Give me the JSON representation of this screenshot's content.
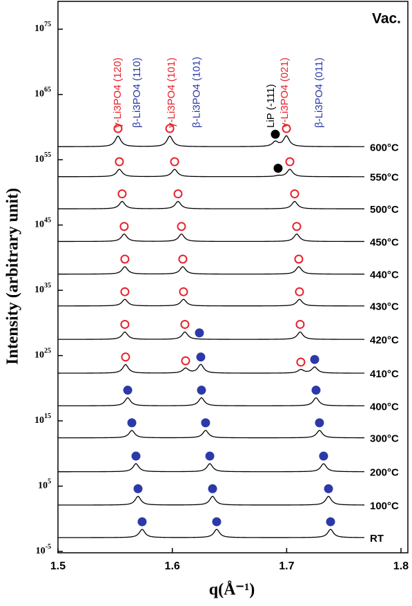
{
  "chart_data": {
    "type": "offset-line",
    "title": "Vac.",
    "xlabel": "q(Å⁻¹)",
    "ylabel": "Intensity (arbitrary unit)",
    "xlim": [
      1.5,
      1.806
    ],
    "xticks": [
      1.5,
      1.6,
      1.7,
      1.8
    ],
    "ylim": [
      1e-05,
      1e+80
    ],
    "log_y": true,
    "yticks": [
      {
        "value": 1e-05,
        "label": "10^-5"
      },
      {
        "value": 100000.0,
        "label": "10^5"
      },
      {
        "value": 1000000000000000.0,
        "label": "10^15"
      },
      {
        "value": 1e+25,
        "label": "10^25"
      },
      {
        "value": 1e+35,
        "label": "10^35"
      },
      {
        "value": 1e+45,
        "label": "10^45"
      },
      {
        "value": 1e+55,
        "label": "10^55"
      },
      {
        "value": 1e+65,
        "label": "10^65"
      },
      {
        "value": 1e+75,
        "label": "10^75"
      }
    ],
    "line_color": "#000000",
    "open_marker_color": "#e8202a",
    "annotations": [
      {
        "text": "γ-Li3PO4 (120)",
        "q": 1.5525,
        "color": "#e8202a"
      },
      {
        "text": "β-Li3PO4 (110)",
        "q": 1.5695,
        "color": "#2b3aa8"
      },
      {
        "text": "γ-Li3PO4 (101)",
        "q": 1.5995,
        "color": "#e8202a"
      },
      {
        "text": "β-Li3PO4 (101)",
        "q": 1.6215,
        "color": "#2b3aa8"
      },
      {
        "text": "LiP (-111)",
        "q": 1.6865,
        "color": "#000000"
      },
      {
        "text": "γ-Li3PO4 (021)",
        "q": 1.6985,
        "color": "#e8202a"
      },
      {
        "text": "β-Li3PO4 (011)",
        "q": 1.7287,
        "color": "#2b3aa8"
      }
    ],
    "series": [
      {
        "name": "600°C",
        "baseline": 1e+57,
        "x": [
          1.5525,
          1.5978,
          1.6901,
          1.6998
        ],
        "values": [
          6e+59,
          6e+59,
          8e+58,
          6e+59
        ],
        "colors": [
          "#e8202a",
          "#e8202a",
          "#000000",
          "#e8202a"
        ]
      },
      {
        "name": "550°C",
        "baseline": 2.5e+52,
        "x": [
          1.5537,
          1.602,
          1.6925,
          1.7028
        ],
        "values": [
          5e+54,
          5e+54,
          5e+53,
          5e+54
        ],
        "colors": [
          "#e8202a",
          "#e8202a",
          "#000000",
          "#e8202a"
        ]
      },
      {
        "name": "500°C",
        "baseline": 3e+47,
        "x": [
          1.5561,
          1.605,
          1.707
        ],
        "values": [
          6e+49,
          6e+49,
          6e+49
        ],
        "colors": [
          "#e8202a",
          "#e8202a",
          "#e8202a"
        ]
      },
      {
        "name": "450°C",
        "baseline": 3e+42,
        "x": [
          1.5579,
          1.608,
          1.7088
        ],
        "values": [
          6e+44,
          6e+44,
          6e+44
        ],
        "colors": [
          "#e8202a",
          "#e8202a",
          "#e8202a"
        ]
      },
      {
        "name": "440°C",
        "baseline": 3e+37,
        "x": [
          1.5585,
          1.6092,
          1.7106
        ],
        "values": [
          6e+39,
          6e+39,
          6e+39
        ],
        "colors": [
          "#e8202a",
          "#e8202a",
          "#e8202a"
        ]
      },
      {
        "name": "430°C",
        "baseline": 4e+32,
        "x": [
          1.5585,
          1.6098,
          1.7112
        ],
        "values": [
          6e+34,
          6e+34,
          6e+34
        ],
        "colors": [
          "#e8202a",
          "#e8202a",
          "#e8202a"
        ]
      },
      {
        "name": "420°C",
        "baseline": 3e+27,
        "x": [
          1.5585,
          1.611,
          1.6237,
          1.7118
        ],
        "values": [
          6e+29,
          6e+29,
          3e+28,
          6e+29
        ],
        "colors": [
          "#e8202a",
          "#e8202a",
          "#2b3aa8",
          "#e8202a"
        ]
      },
      {
        "name": "410°C",
        "baseline": 2e+22,
        "x": [
          1.5591,
          1.6116,
          1.6249,
          1.7124,
          1.7245
        ],
        "values": [
          6e+24,
          1.6e+24,
          6e+24,
          1e+24,
          2.5e+24
        ],
        "colors": [
          "#e8202a",
          "#e8202a",
          "#2b3aa8",
          "#e8202a",
          "#2b3aa8"
        ]
      },
      {
        "name": "400°C",
        "baseline": 2e+17,
        "x": [
          1.561,
          1.6255,
          1.7257
        ],
        "values": [
          5e+19,
          5e+19,
          5e+19
        ],
        "colors": [
          "#2b3aa8",
          "#2b3aa8",
          "#2b3aa8"
        ]
      },
      {
        "name": "300°C",
        "baseline": 2500000000000.0,
        "x": [
          1.5646,
          1.6291,
          1.7287
        ],
        "values": [
          500000000000000.0,
          500000000000000.0,
          500000000000000.0
        ],
        "colors": [
          "#2b3aa8",
          "#2b3aa8",
          "#2b3aa8"
        ]
      },
      {
        "name": "200°C",
        "baseline": 16000000.0,
        "x": [
          1.5682,
          1.6328,
          1.7323
        ],
        "values": [
          4000000000.0,
          4000000000.0,
          4000000000.0
        ],
        "colors": [
          "#2b3aa8",
          "#2b3aa8",
          "#2b3aa8"
        ]
      },
      {
        "name": "100°C",
        "baseline": 126,
        "x": [
          1.57,
          1.6352,
          1.7366
        ],
        "values": [
          40000.0,
          40000.0,
          40000.0
        ],
        "colors": [
          "#2b3aa8",
          "#2b3aa8",
          "#2b3aa8"
        ]
      },
      {
        "name": "RT",
        "baseline": 0.0013,
        "x": [
          1.5736,
          1.6388,
          1.7384
        ],
        "values": [
          0.35,
          0.35,
          0.35
        ],
        "colors": [
          "#2b3aa8",
          "#2b3aa8",
          "#2b3aa8"
        ]
      }
    ]
  }
}
